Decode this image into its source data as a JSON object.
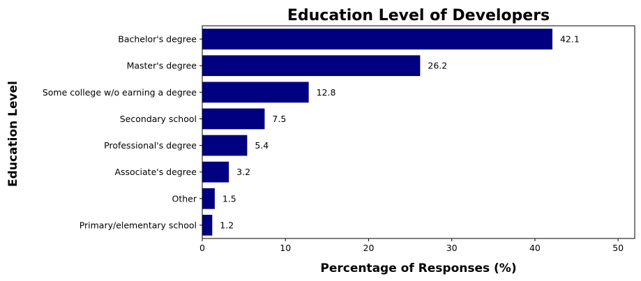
{
  "chart_data": {
    "type": "bar",
    "orientation": "horizontal",
    "title": "Education Level of Developers",
    "xlabel": "Percentage of Responses (%)",
    "ylabel": "Education Level",
    "categories": [
      "Bachelor's degree",
      "Master's degree",
      "Some college w/o earning a degree",
      "Secondary school",
      "Professional's degree",
      "Associate's degree",
      "Other",
      "Primary/elementary school"
    ],
    "values": [
      42.1,
      26.2,
      12.8,
      7.5,
      5.4,
      3.2,
      1.5,
      1.2
    ],
    "data_labels": [
      "42.1",
      "26.2",
      "12.8",
      "7.5",
      "5.4",
      "3.2",
      "1.5",
      "1.2"
    ],
    "xlim": [
      0,
      52
    ],
    "xticks": [
      0,
      10,
      20,
      30,
      40,
      50
    ],
    "xtick_labels": [
      "0",
      "10",
      "20",
      "30",
      "40",
      "50"
    ],
    "bar_color": "#000080",
    "grid": false,
    "legend": "none"
  }
}
